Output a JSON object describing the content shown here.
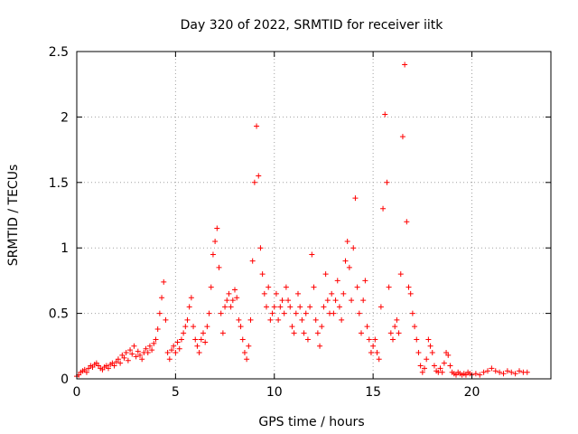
{
  "chart_data": {
    "type": "scatter",
    "title": "Day 320 of 2022, SRMTID for receiver iitk",
    "xlabel": "GPS time / hours",
    "ylabel": "SRMTID / TECUs",
    "xlim": [
      0,
      24
    ],
    "ylim": [
      0,
      2.5
    ],
    "xticks": [
      0,
      5,
      10,
      15,
      20
    ],
    "xtick_labels": [
      "0",
      "5",
      "10",
      "15",
      "20"
    ],
    "yticks": [
      0,
      0.5,
      1,
      1.5,
      2,
      2.5
    ],
    "ytick_labels": [
      "0",
      "0.5",
      "1",
      "1.5",
      "2",
      "2.5"
    ],
    "grid": true,
    "marker": "+",
    "marker_color": "#ff0000",
    "series": [
      {
        "name": "SRMTID",
        "points": [
          [
            0.0,
            0.02
          ],
          [
            0.1,
            0.03
          ],
          [
            0.2,
            0.05
          ],
          [
            0.3,
            0.06
          ],
          [
            0.4,
            0.07
          ],
          [
            0.5,
            0.05
          ],
          [
            0.6,
            0.08
          ],
          [
            0.7,
            0.1
          ],
          [
            0.8,
            0.09
          ],
          [
            0.9,
            0.11
          ],
          [
            1.0,
            0.12
          ],
          [
            1.1,
            0.1
          ],
          [
            1.2,
            0.08
          ],
          [
            1.3,
            0.07
          ],
          [
            1.4,
            0.09
          ],
          [
            1.5,
            0.1
          ],
          [
            1.6,
            0.08
          ],
          [
            1.7,
            0.11
          ],
          [
            1.8,
            0.12
          ],
          [
            1.9,
            0.1
          ],
          [
            2.0,
            0.13
          ],
          [
            2.1,
            0.15
          ],
          [
            2.2,
            0.12
          ],
          [
            2.3,
            0.18
          ],
          [
            2.4,
            0.16
          ],
          [
            2.5,
            0.2
          ],
          [
            2.6,
            0.14
          ],
          [
            2.7,
            0.22
          ],
          [
            2.8,
            0.19
          ],
          [
            2.9,
            0.25
          ],
          [
            3.0,
            0.17
          ],
          [
            3.1,
            0.21
          ],
          [
            3.2,
            0.18
          ],
          [
            3.3,
            0.15
          ],
          [
            3.4,
            0.2
          ],
          [
            3.5,
            0.23
          ],
          [
            3.6,
            0.2
          ],
          [
            3.7,
            0.25
          ],
          [
            3.8,
            0.22
          ],
          [
            3.9,
            0.27
          ],
          [
            4.0,
            0.3
          ],
          [
            4.1,
            0.38
          ],
          [
            4.2,
            0.5
          ],
          [
            4.3,
            0.62
          ],
          [
            4.4,
            0.74
          ],
          [
            4.5,
            0.45
          ],
          [
            4.6,
            0.2
          ],
          [
            4.7,
            0.15
          ],
          [
            4.8,
            0.22
          ],
          [
            4.9,
            0.25
          ],
          [
            5.0,
            0.2
          ],
          [
            5.1,
            0.28
          ],
          [
            5.2,
            0.23
          ],
          [
            5.3,
            0.3
          ],
          [
            5.4,
            0.35
          ],
          [
            5.5,
            0.4
          ],
          [
            5.6,
            0.45
          ],
          [
            5.7,
            0.55
          ],
          [
            5.8,
            0.62
          ],
          [
            5.9,
            0.4
          ],
          [
            6.0,
            0.3
          ],
          [
            6.1,
            0.25
          ],
          [
            6.2,
            0.2
          ],
          [
            6.3,
            0.3
          ],
          [
            6.4,
            0.35
          ],
          [
            6.5,
            0.28
          ],
          [
            6.6,
            0.4
          ],
          [
            6.7,
            0.5
          ],
          [
            6.8,
            0.7
          ],
          [
            6.9,
            0.95
          ],
          [
            7.0,
            1.05
          ],
          [
            7.1,
            1.15
          ],
          [
            7.2,
            0.85
          ],
          [
            7.3,
            0.5
          ],
          [
            7.4,
            0.35
          ],
          [
            7.5,
            0.55
          ],
          [
            7.6,
            0.6
          ],
          [
            7.7,
            0.65
          ],
          [
            7.8,
            0.55
          ],
          [
            7.9,
            0.6
          ],
          [
            8.0,
            0.68
          ],
          [
            8.1,
            0.62
          ],
          [
            8.2,
            0.45
          ],
          [
            8.3,
            0.4
          ],
          [
            8.4,
            0.3
          ],
          [
            8.5,
            0.2
          ],
          [
            8.6,
            0.15
          ],
          [
            8.7,
            0.25
          ],
          [
            8.8,
            0.45
          ],
          [
            8.9,
            0.9
          ],
          [
            9.0,
            1.5
          ],
          [
            9.1,
            1.93
          ],
          [
            9.2,
            1.55
          ],
          [
            9.3,
            1.0
          ],
          [
            9.4,
            0.8
          ],
          [
            9.5,
            0.65
          ],
          [
            9.6,
            0.55
          ],
          [
            9.7,
            0.7
          ],
          [
            9.8,
            0.45
          ],
          [
            9.9,
            0.5
          ],
          [
            10.0,
            0.55
          ],
          [
            10.1,
            0.65
          ],
          [
            10.2,
            0.45
          ],
          [
            10.3,
            0.55
          ],
          [
            10.4,
            0.6
          ],
          [
            10.5,
            0.5
          ],
          [
            10.6,
            0.7
          ],
          [
            10.7,
            0.6
          ],
          [
            10.8,
            0.55
          ],
          [
            10.9,
            0.4
          ],
          [
            11.0,
            0.35
          ],
          [
            11.1,
            0.5
          ],
          [
            11.2,
            0.65
          ],
          [
            11.3,
            0.55
          ],
          [
            11.4,
            0.45
          ],
          [
            11.5,
            0.35
          ],
          [
            11.6,
            0.5
          ],
          [
            11.7,
            0.3
          ],
          [
            11.8,
            0.55
          ],
          [
            11.9,
            0.95
          ],
          [
            12.0,
            0.7
          ],
          [
            12.1,
            0.45
          ],
          [
            12.2,
            0.35
          ],
          [
            12.3,
            0.25
          ],
          [
            12.4,
            0.4
          ],
          [
            12.5,
            0.55
          ],
          [
            12.6,
            0.8
          ],
          [
            12.7,
            0.6
          ],
          [
            12.8,
            0.5
          ],
          [
            12.9,
            0.65
          ],
          [
            13.0,
            0.5
          ],
          [
            13.1,
            0.6
          ],
          [
            13.2,
            0.75
          ],
          [
            13.3,
            0.55
          ],
          [
            13.4,
            0.45
          ],
          [
            13.5,
            0.65
          ],
          [
            13.6,
            0.9
          ],
          [
            13.7,
            1.05
          ],
          [
            13.8,
            0.85
          ],
          [
            13.9,
            0.6
          ],
          [
            14.0,
            1.0
          ],
          [
            14.1,
            1.38
          ],
          [
            14.2,
            0.7
          ],
          [
            14.3,
            0.5
          ],
          [
            14.4,
            0.35
          ],
          [
            14.5,
            0.6
          ],
          [
            14.6,
            0.75
          ],
          [
            14.7,
            0.4
          ],
          [
            14.8,
            0.3
          ],
          [
            14.9,
            0.2
          ],
          [
            15.0,
            0.25
          ],
          [
            15.1,
            0.3
          ],
          [
            15.2,
            0.2
          ],
          [
            15.3,
            0.15
          ],
          [
            15.4,
            0.55
          ],
          [
            15.5,
            1.3
          ],
          [
            15.6,
            2.02
          ],
          [
            15.7,
            1.5
          ],
          [
            15.8,
            0.7
          ],
          [
            15.9,
            0.35
          ],
          [
            16.0,
            0.3
          ],
          [
            16.1,
            0.4
          ],
          [
            16.2,
            0.45
          ],
          [
            16.3,
            0.35
          ],
          [
            16.4,
            0.8
          ],
          [
            16.5,
            1.85
          ],
          [
            16.6,
            2.4
          ],
          [
            16.7,
            1.2
          ],
          [
            16.8,
            0.7
          ],
          [
            16.9,
            0.65
          ],
          [
            17.0,
            0.5
          ],
          [
            17.1,
            0.4
          ],
          [
            17.2,
            0.3
          ],
          [
            17.3,
            0.2
          ],
          [
            17.4,
            0.1
          ],
          [
            17.5,
            0.05
          ],
          [
            17.6,
            0.08
          ],
          [
            17.7,
            0.15
          ],
          [
            17.8,
            0.3
          ],
          [
            17.9,
            0.25
          ],
          [
            18.0,
            0.2
          ],
          [
            18.1,
            0.1
          ],
          [
            18.2,
            0.06
          ],
          [
            18.3,
            0.05
          ],
          [
            18.4,
            0.08
          ],
          [
            18.5,
            0.05
          ],
          [
            18.6,
            0.12
          ],
          [
            18.7,
            0.2
          ],
          [
            18.8,
            0.18
          ],
          [
            18.9,
            0.1
          ],
          [
            19.0,
            0.05
          ],
          [
            19.1,
            0.04
          ],
          [
            19.2,
            0.03
          ],
          [
            19.3,
            0.05
          ],
          [
            19.4,
            0.04
          ],
          [
            19.5,
            0.03
          ],
          [
            19.6,
            0.04
          ],
          [
            19.7,
            0.03
          ],
          [
            19.8,
            0.05
          ],
          [
            19.9,
            0.04
          ],
          [
            20.0,
            0.03
          ],
          [
            20.2,
            0.04
          ],
          [
            20.4,
            0.03
          ],
          [
            20.6,
            0.05
          ],
          [
            20.8,
            0.06
          ],
          [
            21.0,
            0.08
          ],
          [
            21.2,
            0.06
          ],
          [
            21.4,
            0.05
          ],
          [
            21.6,
            0.04
          ],
          [
            21.8,
            0.06
          ],
          [
            22.0,
            0.05
          ],
          [
            22.2,
            0.04
          ],
          [
            22.4,
            0.06
          ],
          [
            22.6,
            0.05
          ],
          [
            22.8,
            0.05
          ]
        ]
      }
    ]
  }
}
